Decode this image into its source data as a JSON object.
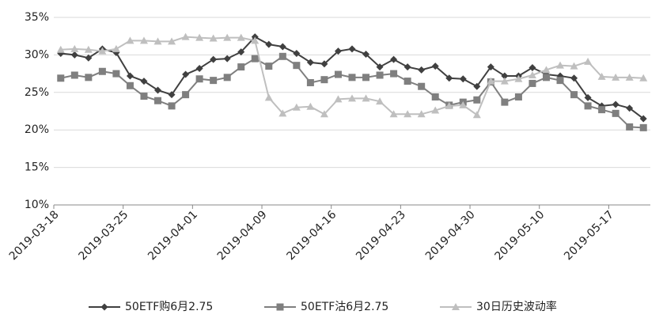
{
  "chart_data": {
    "type": "line",
    "categories": [
      "2019-03-18",
      null,
      null,
      null,
      null,
      "2019-03-25",
      null,
      null,
      null,
      null,
      "2019-04-01",
      null,
      null,
      null,
      null,
      "2019-04-09",
      null,
      null,
      null,
      null,
      "2019-04-16",
      null,
      null,
      null,
      null,
      "2019-04-23",
      null,
      null,
      null,
      null,
      "2019-04-30",
      null,
      null,
      null,
      null,
      "2019-05-10",
      null,
      null,
      null,
      null,
      "2019-05-17",
      null,
      null
    ],
    "series": [
      {
        "name": "50ETF购6月2.75",
        "color": "#404040",
        "marker": "diamond",
        "values": [
          30.2,
          30.0,
          29.6,
          30.8,
          30.3,
          27.2,
          26.5,
          25.3,
          24.7,
          27.4,
          28.2,
          29.4,
          29.5,
          30.4,
          32.4,
          31.4,
          31.1,
          30.2,
          29.0,
          28.8,
          30.5,
          30.8,
          30.1,
          28.4,
          29.4,
          28.4,
          28.0,
          28.5,
          26.9,
          26.8,
          25.8,
          28.4,
          27.2,
          27.2,
          28.3,
          27.4,
          27.2,
          26.9,
          24.3,
          23.2,
          23.4,
          22.9,
          21.5
        ]
      },
      {
        "name": "50ETF沽6月2.75",
        "color": "#7f7f7f",
        "marker": "square",
        "values": [
          26.9,
          27.3,
          27.0,
          27.8,
          27.5,
          25.9,
          24.5,
          23.9,
          23.2,
          24.7,
          26.8,
          26.6,
          27.0,
          28.4,
          29.5,
          28.5,
          29.8,
          28.6,
          26.3,
          26.7,
          27.4,
          27.0,
          27.0,
          27.3,
          27.5,
          26.5,
          25.8,
          24.4,
          23.3,
          23.7,
          24.0,
          26.4,
          23.7,
          24.4,
          26.2,
          27.0,
          26.6,
          24.7,
          23.2,
          22.7,
          22.2,
          20.4,
          20.3
        ]
      },
      {
        "name": "30日历史波动率",
        "color": "#bfbfbf",
        "marker": "triangle",
        "values": [
          30.7,
          30.8,
          30.7,
          30.5,
          30.8,
          31.9,
          31.9,
          31.8,
          31.8,
          32.4,
          32.3,
          32.2,
          32.3,
          32.3,
          31.9,
          24.3,
          22.2,
          23.0,
          23.1,
          22.1,
          24.1,
          24.2,
          24.2,
          23.8,
          22.1,
          22.1,
          22.1,
          22.6,
          23.2,
          23.3,
          22.0,
          26.5,
          26.5,
          26.8,
          27.3,
          28.0,
          28.6,
          28.5,
          29.1,
          27.1,
          27.0,
          27.0,
          26.9
        ]
      }
    ],
    "ylim": [
      10,
      35
    ],
    "yticks": [
      {
        "value": 10,
        "label": "10%"
      },
      {
        "value": 15,
        "label": "15%"
      },
      {
        "value": 20,
        "label": "20%"
      },
      {
        "value": 25,
        "label": "25%"
      },
      {
        "value": 30,
        "label": "30%"
      },
      {
        "value": 35,
        "label": "35%"
      }
    ],
    "grid": true,
    "legend": "bottom"
  }
}
